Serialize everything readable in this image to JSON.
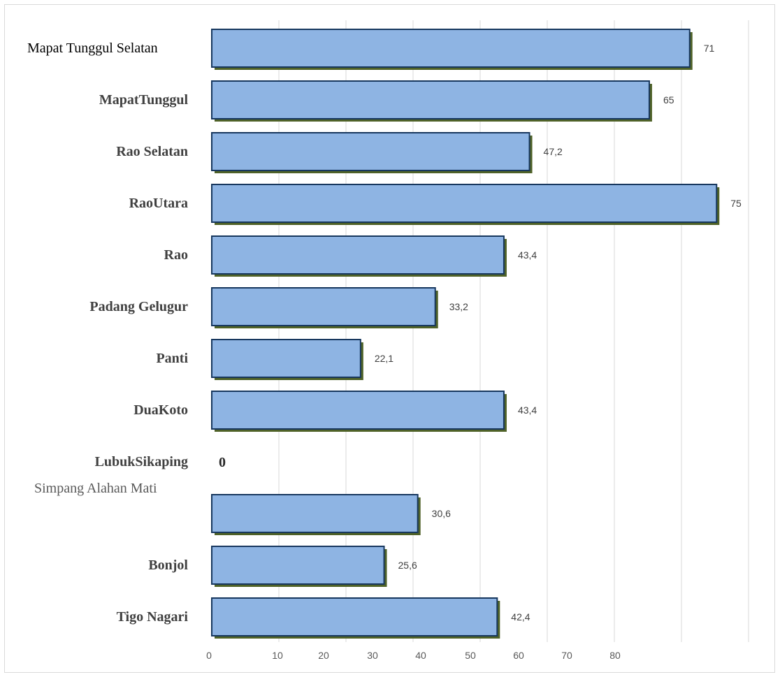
{
  "chart_data": {
    "type": "bar",
    "orientation": "horizontal",
    "title": "",
    "xlabel": "",
    "ylabel": "",
    "categories": [
      "Mapat Tunggul Selatan",
      "MapatTunggul",
      "Rao Selatan",
      "RaoUtara",
      "Rao",
      "Padang Gelugur",
      "Panti",
      "DuaKoto",
      "LubukSikaping",
      "Simpang Alahan Mati",
      "Bonjol",
      "Tigo Nagari"
    ],
    "values": [
      71,
      65,
      47.2,
      75,
      43.4,
      33.2,
      22.1,
      43.4,
      0,
      30.6,
      25.6,
      42.4
    ],
    "data_labels": [
      "71",
      "65",
      "47,2",
      "75",
      "43,4",
      "33,2",
      "22,1",
      "43,4",
      "0",
      "30,6",
      "25,6",
      "42,4"
    ],
    "category_styles": [
      "plain-dark",
      "bold",
      "bold",
      "bold",
      "bold",
      "bold",
      "bold",
      "bold",
      "bold",
      "plain-light",
      "bold",
      "bold"
    ],
    "tick_labels": [
      "0",
      "10",
      "20",
      "30",
      "40",
      "50",
      "60",
      "70",
      "80"
    ],
    "grid": true,
    "legend": "none",
    "colors": {
      "bar_fill": "#8eb4e3",
      "bar_outline": "#17375e",
      "bar_shadow": "#4f6228",
      "grid": "#d9d9d9"
    }
  }
}
